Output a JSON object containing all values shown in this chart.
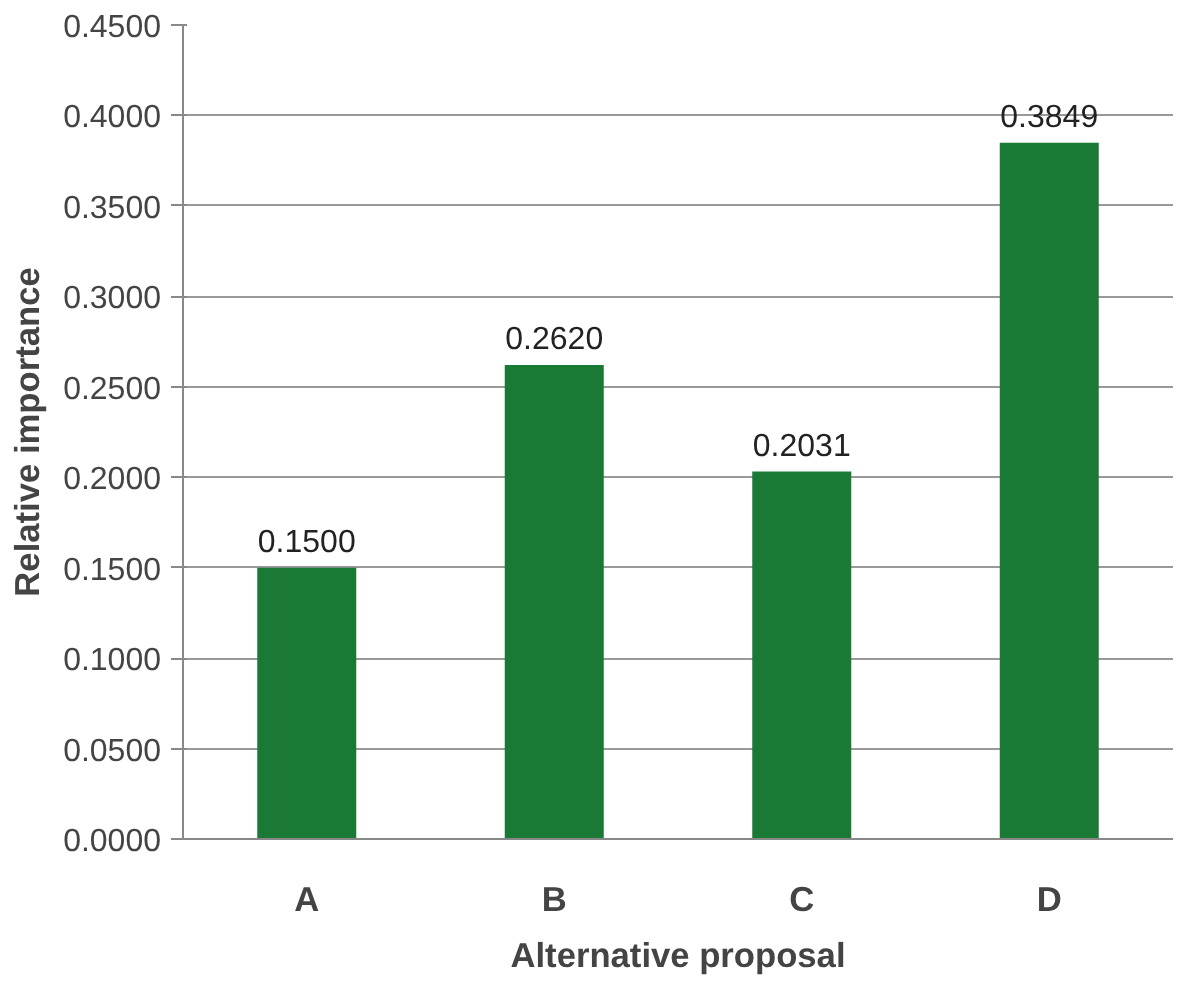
{
  "chart_data": {
    "type": "bar",
    "xlabel": "Alternative proposal",
    "ylabel": "Relative importance",
    "categories": [
      "A",
      "B",
      "C",
      "D"
    ],
    "values": [
      0.15,
      0.262,
      0.2031,
      0.3849
    ],
    "value_labels": [
      "0.1500",
      "0.2620",
      "0.2031",
      "0.3849"
    ],
    "color": "#1a7a35",
    "ylim": [
      0,
      0.45
    ],
    "yticks": [
      {
        "value": 0,
        "label": "0.0000"
      },
      {
        "value": 0.05,
        "label": "0.0500"
      },
      {
        "value": 0.1,
        "label": "0.1000"
      },
      {
        "value": 0.15,
        "label": "0.1500"
      },
      {
        "value": 0.2,
        "label": "0.2000"
      },
      {
        "value": 0.25,
        "label": "0.2500"
      },
      {
        "value": 0.3,
        "label": "0.3000"
      },
      {
        "value": 0.35,
        "label": "0.3500"
      },
      {
        "value": 0.4,
        "label": "0.4000"
      },
      {
        "value": 0.45,
        "label": "0.4500"
      }
    ],
    "grid": "y"
  }
}
